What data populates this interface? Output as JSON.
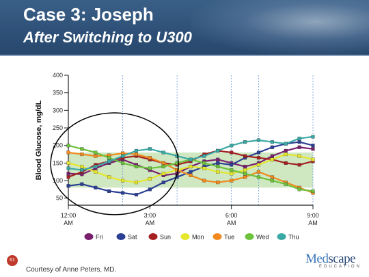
{
  "slide": {
    "title": "Case 3: Joseph",
    "subtitle": "After Switching to U300",
    "page_number": "61",
    "credit": "Courtesy of Anne Peters, MD.",
    "logo_word_a": "Med",
    "logo_word_b": "scape",
    "logo_sub": "EDUCATION"
  },
  "chart_data": {
    "type": "scatter",
    "ylabel": "Blood Glucose, mg/dL",
    "xlabel": "",
    "ylim": [
      30,
      400
    ],
    "yticks": [
      50,
      100,
      150,
      200,
      250,
      300,
      350,
      400
    ],
    "xlim_hours": [
      0,
      9
    ],
    "xticks": [
      {
        "hour": 0,
        "label1": "12:00",
        "label2": "AM"
      },
      {
        "hour": 3,
        "label1": "3:00",
        "label2": "AM"
      },
      {
        "hour": 6,
        "label1": "6:00",
        "label2": "AM"
      },
      {
        "hour": 9,
        "label1": "9:00",
        "label2": "AM"
      }
    ],
    "target_range": [
      80,
      180
    ],
    "gridlines_hours": [
      2,
      4,
      6,
      7,
      9
    ],
    "grid": true,
    "legend_position": "bottom",
    "colors": {
      "target_band": "#cfe8c2",
      "highlight": "#000000"
    },
    "highlight_ellipse": {
      "center_hour": 1.7,
      "center_value": 148,
      "hour_radius": 2.35,
      "value_radius": 145
    },
    "series": [
      {
        "name": "Fri",
        "color": "#7a1f6e",
        "values": [
          [
            0,
            120
          ],
          [
            0.5,
            118
          ],
          [
            1,
            135
          ],
          [
            1.5,
            150
          ],
          [
            2,
            160
          ],
          [
            2.5,
            145
          ],
          [
            3,
            130
          ],
          [
            3.5,
            115
          ],
          [
            4,
            120
          ],
          [
            4.5,
            140
          ],
          [
            5,
            155
          ],
          [
            5.5,
            160
          ],
          [
            6,
            150
          ],
          [
            6.5,
            140
          ],
          [
            7,
            150
          ],
          [
            7.5,
            170
          ],
          [
            8,
            185
          ],
          [
            8.5,
            195
          ],
          [
            9,
            190
          ]
        ]
      },
      {
        "name": "Sat",
        "color": "#2b3f95",
        "values": [
          [
            0,
            85
          ],
          [
            0.5,
            90
          ],
          [
            1,
            80
          ],
          [
            1.5,
            70
          ],
          [
            2,
            65
          ],
          [
            2.5,
            60
          ],
          [
            3,
            75
          ],
          [
            3.5,
            95
          ],
          [
            4,
            110
          ],
          [
            4.5,
            125
          ],
          [
            5,
            140
          ],
          [
            5.5,
            150
          ],
          [
            6,
            145
          ],
          [
            6.5,
            165
          ],
          [
            7,
            180
          ],
          [
            7.5,
            195
          ],
          [
            8,
            205
          ],
          [
            8.5,
            210
          ],
          [
            9,
            200
          ]
        ]
      },
      {
        "name": "Sun",
        "color": "#a52020",
        "values": [
          [
            0,
            110
          ],
          [
            0.5,
            125
          ],
          [
            1,
            145
          ],
          [
            1.5,
            155
          ],
          [
            2,
            165
          ],
          [
            2.5,
            170
          ],
          [
            3,
            160
          ],
          [
            3.5,
            150
          ],
          [
            4,
            145
          ],
          [
            4.5,
            155
          ],
          [
            5,
            175
          ],
          [
            5.5,
            185
          ],
          [
            6,
            180
          ],
          [
            6.5,
            170
          ],
          [
            7,
            165
          ],
          [
            7.5,
            160
          ],
          [
            8,
            150
          ],
          [
            8.5,
            145
          ],
          [
            9,
            155
          ]
        ]
      },
      {
        "name": "Mon",
        "color": "#e6e62c",
        "values": [
          [
            0,
            150
          ],
          [
            0.5,
            140
          ],
          [
            1,
            125
          ],
          [
            1.5,
            110
          ],
          [
            2,
            100
          ],
          [
            2.5,
            95
          ],
          [
            3,
            105
          ],
          [
            3.5,
            120
          ],
          [
            4,
            130
          ],
          [
            4.5,
            140
          ],
          [
            5,
            135
          ],
          [
            5.5,
            125
          ],
          [
            6,
            120
          ],
          [
            6.5,
            130
          ],
          [
            7,
            145
          ],
          [
            7.5,
            160
          ],
          [
            8,
            175
          ],
          [
            8.5,
            170
          ],
          [
            9,
            160
          ]
        ]
      },
      {
        "name": "Tue",
        "color": "#f08a1e",
        "values": [
          [
            0,
            180
          ],
          [
            0.5,
            175
          ],
          [
            1,
            170
          ],
          [
            1.5,
            172
          ],
          [
            2,
            178
          ],
          [
            2.5,
            175
          ],
          [
            3,
            165
          ],
          [
            3.5,
            150
          ],
          [
            4,
            130
          ],
          [
            4.5,
            115
          ],
          [
            5,
            100
          ],
          [
            5.5,
            95
          ],
          [
            6,
            100
          ],
          [
            6.5,
            110
          ],
          [
            7,
            125
          ],
          [
            7.5,
            110
          ],
          [
            8,
            95
          ],
          [
            8.5,
            80
          ],
          [
            9,
            65
          ]
        ]
      },
      {
        "name": "Wed",
        "color": "#6cc23c",
        "values": [
          [
            0,
            200
          ],
          [
            0.5,
            190
          ],
          [
            1,
            180
          ],
          [
            1.5,
            165
          ],
          [
            2,
            150
          ],
          [
            2.5,
            140
          ],
          [
            3,
            135
          ],
          [
            3.5,
            140
          ],
          [
            4,
            150
          ],
          [
            4.5,
            160
          ],
          [
            5,
            150
          ],
          [
            5.5,
            140
          ],
          [
            6,
            130
          ],
          [
            6.5,
            120
          ],
          [
            7,
            110
          ],
          [
            7.5,
            100
          ],
          [
            8,
            90
          ],
          [
            8.5,
            75
          ],
          [
            9,
            70
          ]
        ]
      },
      {
        "name": "Thu",
        "color": "#3aa9a6",
        "values": [
          [
            0,
            135
          ],
          [
            0.5,
            130
          ],
          [
            1,
            140
          ],
          [
            1.5,
            155
          ],
          [
            2,
            170
          ],
          [
            2.5,
            185
          ],
          [
            3,
            190
          ],
          [
            3.5,
            180
          ],
          [
            4,
            170
          ],
          [
            4.5,
            160
          ],
          [
            5,
            170
          ],
          [
            5.5,
            185
          ],
          [
            6,
            200
          ],
          [
            6.5,
            210
          ],
          [
            7,
            215
          ],
          [
            7.5,
            210
          ],
          [
            8,
            205
          ],
          [
            8.5,
            220
          ],
          [
            9,
            225
          ]
        ]
      }
    ]
  }
}
